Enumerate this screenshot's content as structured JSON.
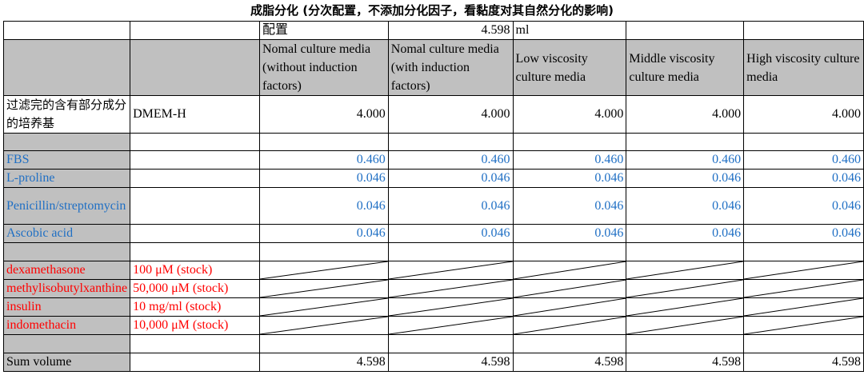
{
  "title": "成脂分化 (分次配置，不添加分化因子，看黏度对其自然分化的影响)",
  "config_row": {
    "label": "配置",
    "value": "4.598",
    "unit": "ml"
  },
  "columns": [
    "Nomal culture media (without induction factors)",
    "Nomal culture media (with induction factors)",
    "Low viscosity culture media",
    "Middle viscosity culture media",
    "High viscosity culture media"
  ],
  "base_medium": {
    "label": "过滤完的含有部分成分的培养基",
    "name": "DMEM-H",
    "values": [
      "4.000",
      "4.000",
      "4.000",
      "4.000",
      "4.000"
    ]
  },
  "supplements": [
    {
      "label": "FBS",
      "values": [
        "0.460",
        "0.460",
        "0.460",
        "0.460",
        "0.460"
      ]
    },
    {
      "label": "L-proline",
      "values": [
        "0.046",
        "0.046",
        "0.046",
        "0.046",
        "0.046"
      ]
    },
    {
      "label": "Penicillin/streptomycin",
      "values": [
        "0.046",
        "0.046",
        "0.046",
        "0.046",
        "0.046"
      ]
    },
    {
      "label": "Ascobic acid",
      "values": [
        "0.046",
        "0.046",
        "0.046",
        "0.046",
        "0.046"
      ]
    }
  ],
  "inducers": [
    {
      "label": "dexamethasone",
      "stock": "100 μM (stock)"
    },
    {
      "label": "methylisobutylxanthine",
      "stock": "50,000 μM (stock)"
    },
    {
      "label": "insulin",
      "stock": "10 mg/ml (stock)"
    },
    {
      "label": "indomethacin",
      "stock": "10,000 μM (stock)"
    }
  ],
  "sum_row": {
    "label": "Sum volume",
    "values": [
      "4.598",
      "4.598",
      "4.598",
      "4.598",
      "4.598"
    ]
  },
  "colors": {
    "header_gray": "#c0c0c0",
    "supplement_blue": "#1f6fc4",
    "inducer_red": "#ff0000"
  }
}
